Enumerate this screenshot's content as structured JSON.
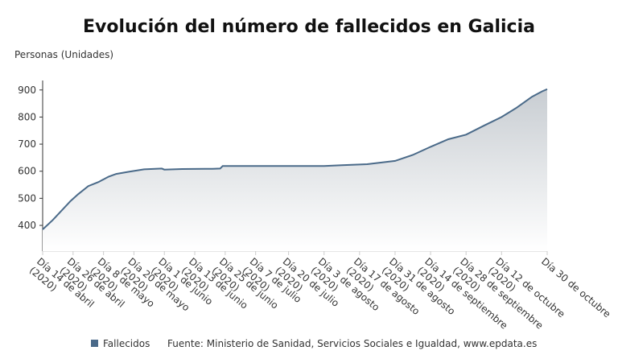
{
  "chart_data": {
    "type": "line",
    "title": "Evolución del número de fallecidos en Galicia",
    "y_axis_label": "Personas (Unidades)",
    "x": [
      "2020-04-14",
      "2020-04-18",
      "2020-04-21",
      "2020-04-25",
      "2020-04-28",
      "2020-05-02",
      "2020-05-06",
      "2020-05-10",
      "2020-05-13",
      "2020-05-18",
      "2020-05-24",
      "2020-05-31",
      "2020-06-01",
      "2020-06-08",
      "2020-06-20",
      "2020-06-23",
      "2020-06-24",
      "2020-07-15",
      "2020-08-03",
      "2020-08-10",
      "2020-08-20",
      "2020-08-31",
      "2020-09-07",
      "2020-09-14",
      "2020-09-21",
      "2020-09-28",
      "2020-10-05",
      "2020-10-12",
      "2020-10-18",
      "2020-10-24",
      "2020-10-28",
      "2020-10-30"
    ],
    "series": [
      {
        "name": "Fallecidos",
        "color": "#4a6a89",
        "values": [
          385,
          420,
          450,
          490,
          515,
          545,
          560,
          580,
          590,
          598,
          607,
          610,
          606,
          608,
          609,
          610,
          619,
          619,
          619,
          622,
          626,
          638,
          660,
          690,
          718,
          735,
          768,
          800,
          835,
          875,
          895,
          903
        ]
      }
    ],
    "xlim": [
      "2020-04-14",
      "2020-10-30"
    ],
    "xticks": [
      {
        "value": "2020-04-14",
        "label": "Día 14 de abril (2020)"
      },
      {
        "value": "2020-04-26",
        "label": "Día 26 de abril (2020)"
      },
      {
        "value": "2020-05-08",
        "label": "Día 8 de mayo (2020)"
      },
      {
        "value": "2020-05-20",
        "label": "Día 20 de mayo (2020)"
      },
      {
        "value": "2020-06-01",
        "label": "Día 1 de junio (2020)"
      },
      {
        "value": "2020-06-13",
        "label": "Día 13 de junio (2020)"
      },
      {
        "value": "2020-06-25",
        "label": "Día 25 de junio (2020)"
      },
      {
        "value": "2020-07-07",
        "label": "Día 7 de julio (2020)"
      },
      {
        "value": "2020-07-20",
        "label": "Día 20 de julio (2020)"
      },
      {
        "value": "2020-08-03",
        "label": "Día 3 de agosto (2020)"
      },
      {
        "value": "2020-08-17",
        "label": "Día 17 de agosto (2020)"
      },
      {
        "value": "2020-08-31",
        "label": "Día 31 de agosto (2020)"
      },
      {
        "value": "2020-09-14",
        "label": "Día 14 de septiembre (2020)"
      },
      {
        "value": "2020-09-28",
        "label": "Día 28 de septiembre (2020)"
      },
      {
        "value": "2020-10-12",
        "label": "Día 12 de octubre (2020)"
      },
      {
        "value": "2020-10-30",
        "label": "Día 30 de octubre"
      }
    ],
    "ylim": [
      305,
      935
    ],
    "yticks": [
      400,
      500,
      600,
      700,
      800,
      900
    ],
    "grid": false,
    "source": "Fuente: Ministerio de Sanidad, Servicios Sociales e Igualdad, www.epdata.es"
  }
}
